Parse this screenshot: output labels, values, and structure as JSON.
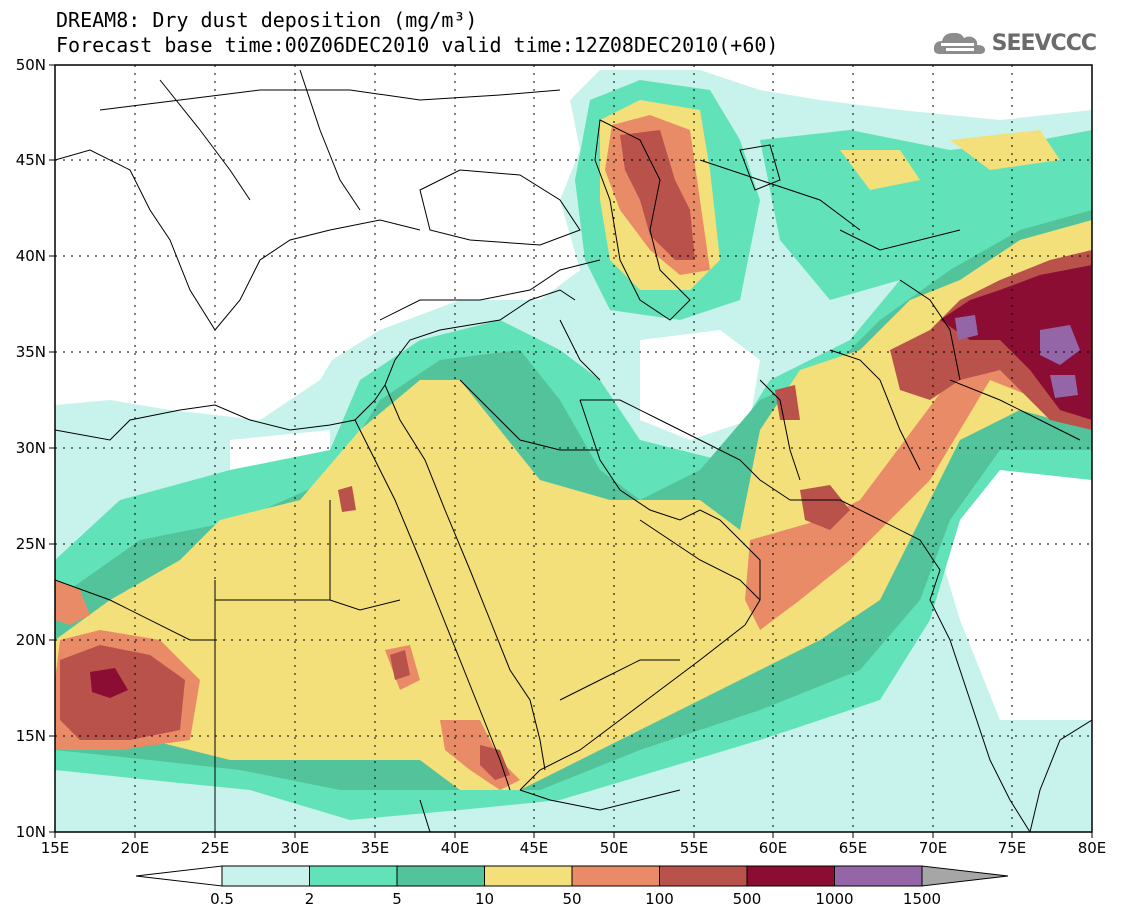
{
  "header": {
    "title_line1": "DREAM8: Dry dust deposition (mg/m³)",
    "title_line2": "Forecast base time:00Z06DEC2010 valid time:12Z08DEC2010(+60)",
    "logo_text": "SEEVCCC"
  },
  "map": {
    "lon_range": [
      "15E",
      "80E"
    ],
    "lat_range": [
      "10N",
      "50N"
    ],
    "x_ticks": [
      "15E",
      "20E",
      "25E",
      "30E",
      "35E",
      "40E",
      "45E",
      "50E",
      "55E",
      "60E",
      "65E",
      "70E",
      "75E",
      "80E"
    ],
    "y_ticks": [
      "10N",
      "15N",
      "20N",
      "25N",
      "30N",
      "35N",
      "40N",
      "45N",
      "50N"
    ],
    "grid": "dotted"
  },
  "legend": {
    "levels": [
      "0.5",
      "2",
      "5",
      "10",
      "50",
      "100",
      "500",
      "1000",
      "1500"
    ],
    "colors": [
      "#c8f3ec",
      "#62e2b8",
      "#52c39a",
      "#f4e07a",
      "#e98b67",
      "#b8524a",
      "#8b0d33",
      "#9466a8"
    ],
    "under_color": "#ffffff",
    "over_color": "#a6a6a6"
  }
}
